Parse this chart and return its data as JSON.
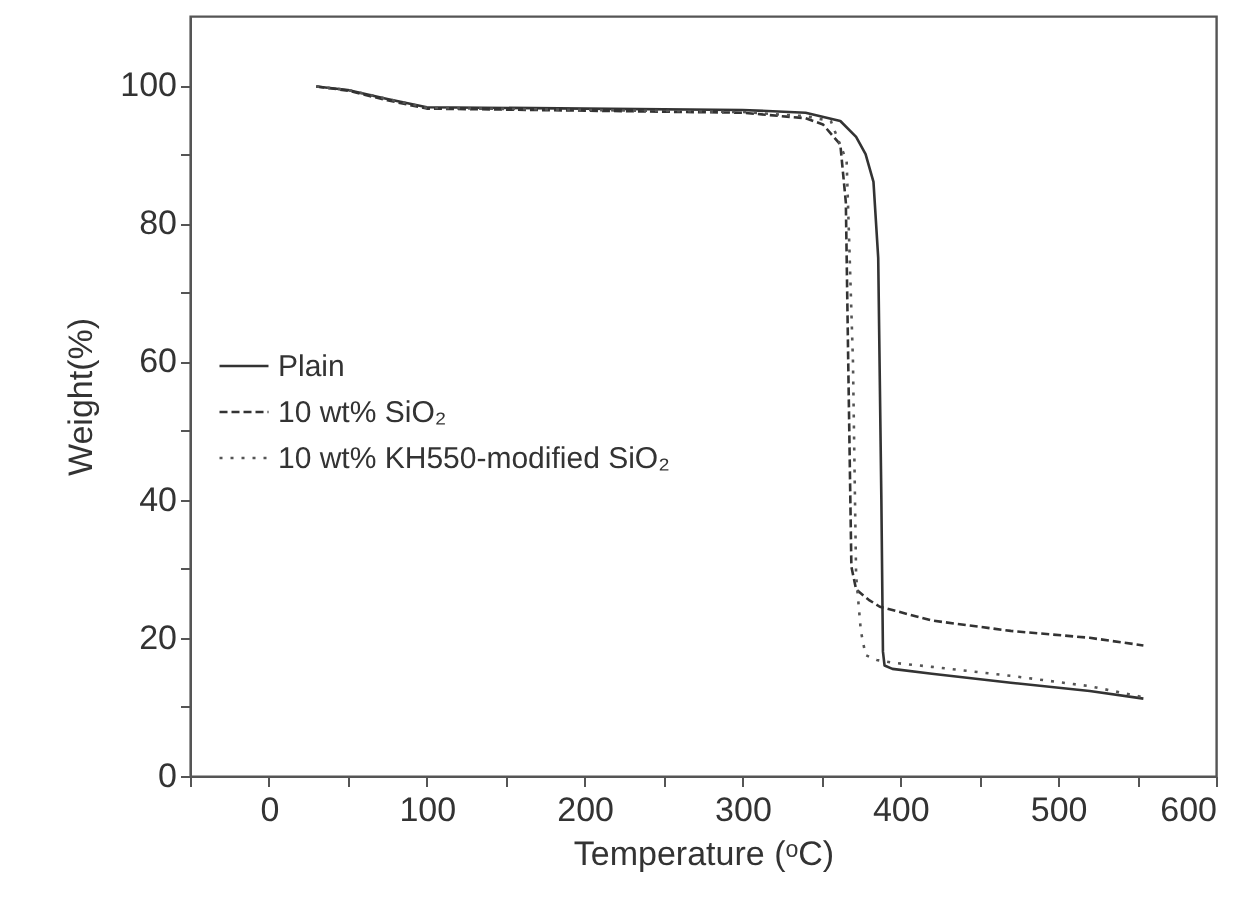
{
  "chart_data": {
    "type": "line",
    "xlabel": "Temperature (ᵒC)",
    "ylabel": "Weight(%)",
    "xlim": [
      -50,
      600
    ],
    "ylim": [
      0,
      110
    ],
    "xticks": [
      {
        "value": -50,
        "label": null
      },
      0,
      {
        "value": 50,
        "label": null
      },
      100,
      {
        "value": 150,
        "label": null
      },
      200,
      {
        "value": 250,
        "label": null
      },
      300,
      {
        "value": 350,
        "label": null
      },
      400,
      {
        "value": 450,
        "label": null
      },
      500,
      {
        "value": 550,
        "label": null
      },
      600
    ],
    "yticks": [
      0,
      {
        "value": 10,
        "label": null
      },
      20,
      {
        "value": 30,
        "label": null
      },
      40,
      {
        "value": 50,
        "label": null
      },
      60,
      {
        "value": 70,
        "label": null
      },
      80,
      {
        "value": 90,
        "label": null
      },
      100
    ],
    "grid": false,
    "legend": "left",
    "marker": "none",
    "series": [
      {
        "name": "Plain",
        "color": "#333333",
        "line_style": "solid",
        "x": [
          30,
          50,
          75,
          100,
          200,
          300,
          340,
          362,
          372,
          378,
          383,
          386,
          388,
          389,
          390,
          395,
          420,
          470,
          520,
          554
        ],
        "values": [
          99.8,
          99.3,
          98,
          96.8,
          96.6,
          96.4,
          96,
          94.8,
          92.5,
          90,
          86,
          75,
          40,
          18,
          16,
          15.5,
          14.8,
          13.5,
          12.3,
          11.2
        ]
      },
      {
        "name": "10 wt% SiO₂",
        "color": "#333333",
        "line_style": "dashed",
        "x": [
          30,
          50,
          75,
          100,
          200,
          300,
          340,
          351,
          362,
          365.5,
          367,
          369,
          372,
          380,
          387,
          420,
          470,
          520,
          554
        ],
        "values": [
          99.8,
          99.2,
          97.8,
          96.6,
          96.3,
          96,
          95.2,
          94.3,
          91.4,
          83,
          60,
          30.3,
          27,
          25.5,
          24.5,
          22.5,
          21,
          20,
          18.9
        ]
      },
      {
        "name": "10 wt% KH550-modified SiO₂",
        "color": "#555555",
        "line_style": "dotted",
        "x": [
          30,
          50,
          75,
          100,
          200,
          300,
          340,
          356,
          366,
          370,
          372,
          375,
          378,
          385,
          395,
          420,
          470,
          520,
          554
        ],
        "values": [
          99.8,
          99.3,
          98,
          96.7,
          96.4,
          96.1,
          95.5,
          94.8,
          89,
          60,
          29,
          21,
          17.5,
          16.8,
          16.4,
          15.8,
          14.5,
          13,
          11.4
        ]
      }
    ]
  }
}
